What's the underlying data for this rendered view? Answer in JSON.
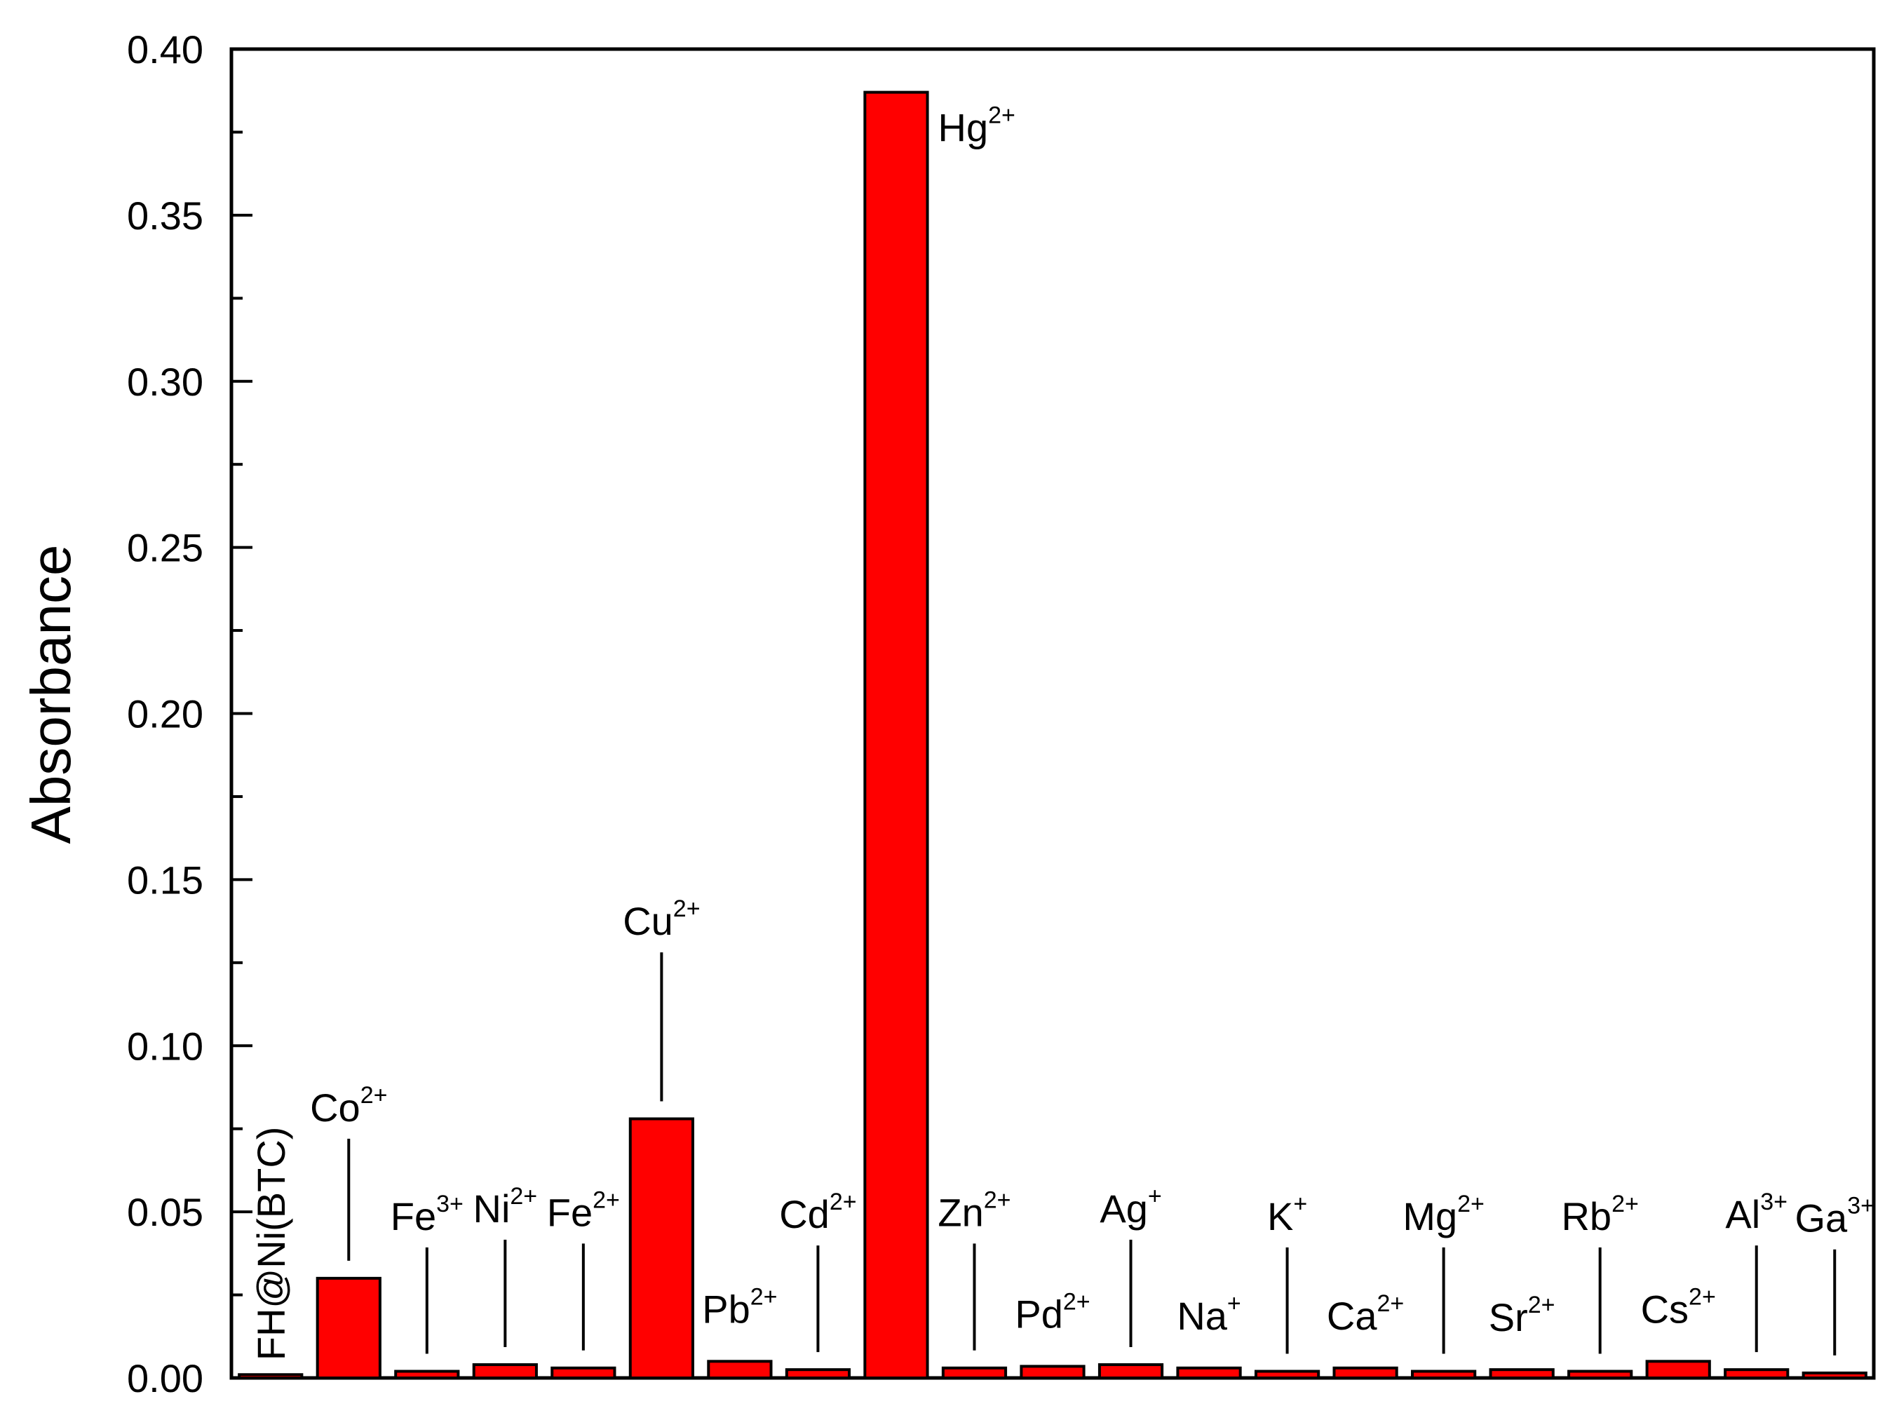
{
  "chart_data": {
    "type": "bar",
    "title": "",
    "xlabel": "",
    "ylabel": "Absorbance",
    "ylim": [
      0,
      0.4
    ],
    "yticks": [
      "0.00",
      "0.05",
      "0.10",
      "0.15",
      "0.20",
      "0.25",
      "0.30",
      "0.35",
      "0.40"
    ],
    "bar_color": "#ff0000",
    "categories": [
      {
        "base": "FH@Ni(BTC)",
        "sup": "",
        "value": 0.001,
        "label_style": "vertical"
      },
      {
        "base": "Co",
        "sup": "2+",
        "value": 0.03,
        "label_style": "leader"
      },
      {
        "base": "Fe",
        "sup": "3+",
        "value": 0.002,
        "label_style": "leader"
      },
      {
        "base": "Ni",
        "sup": "2+",
        "value": 0.004,
        "label_style": "leader"
      },
      {
        "base": "Fe",
        "sup": "2+",
        "value": 0.003,
        "label_style": "leader"
      },
      {
        "base": "Cu",
        "sup": "2+",
        "value": 0.078,
        "label_style": "leader"
      },
      {
        "base": "Pb",
        "sup": "2+",
        "value": 0.005,
        "label_style": "above"
      },
      {
        "base": "Cd",
        "sup": "2+",
        "value": 0.0025,
        "label_style": "leader"
      },
      {
        "base": "Hg",
        "sup": "2+",
        "value": 0.387,
        "label_style": "side"
      },
      {
        "base": "Zn",
        "sup": "2+",
        "value": 0.003,
        "label_style": "leader"
      },
      {
        "base": "Pd",
        "sup": "2+",
        "value": 0.0035,
        "label_style": "above"
      },
      {
        "base": "Ag",
        "sup": "+",
        "value": 0.004,
        "label_style": "leader"
      },
      {
        "base": "Na",
        "sup": "+",
        "value": 0.003,
        "label_style": "above"
      },
      {
        "base": "K",
        "sup": "+",
        "value": 0.002,
        "label_style": "leader"
      },
      {
        "base": "Ca",
        "sup": "2+",
        "value": 0.003,
        "label_style": "above"
      },
      {
        "base": "Mg",
        "sup": "2+",
        "value": 0.002,
        "label_style": "leader"
      },
      {
        "base": "Sr",
        "sup": "2+",
        "value": 0.0025,
        "label_style": "above"
      },
      {
        "base": "Rb",
        "sup": "2+",
        "value": 0.002,
        "label_style": "leader"
      },
      {
        "base": "Cs",
        "sup": "2+",
        "value": 0.005,
        "label_style": "above"
      },
      {
        "base": "Al",
        "sup": "3+",
        "value": 0.0025,
        "label_style": "leader"
      },
      {
        "base": "Ga",
        "sup": "3+",
        "value": 0.0015,
        "label_style": "leader"
      }
    ]
  }
}
